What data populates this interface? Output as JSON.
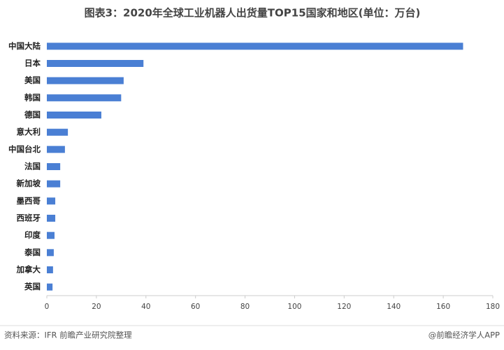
{
  "chart_data": {
    "type": "hbar",
    "title": "图表3：2020年全球工业机器人出货量TOP15国家和地区(单位：万台)",
    "categories": [
      "中国大陆",
      "日本",
      "美国",
      "韩国",
      "德国",
      "意大利",
      "中国台北",
      "法国",
      "新加坡",
      "墨西哥",
      "西班牙",
      "印度",
      "泰国",
      "加拿大",
      "英国"
    ],
    "values": [
      168,
      39,
      31,
      30,
      22,
      8.5,
      7.3,
      5.4,
      5.4,
      3.4,
      3.4,
      3.1,
      2.8,
      2.5,
      2.3
    ],
    "color": "#4a7fd4",
    "xlim": [
      0,
      180
    ],
    "xticks": [
      0,
      20,
      40,
      60,
      80,
      100,
      120,
      140,
      160,
      180
    ],
    "source": "资料来源：IFR 前瞻产业研究院整理",
    "credit": "@前瞻经济学人APP"
  }
}
